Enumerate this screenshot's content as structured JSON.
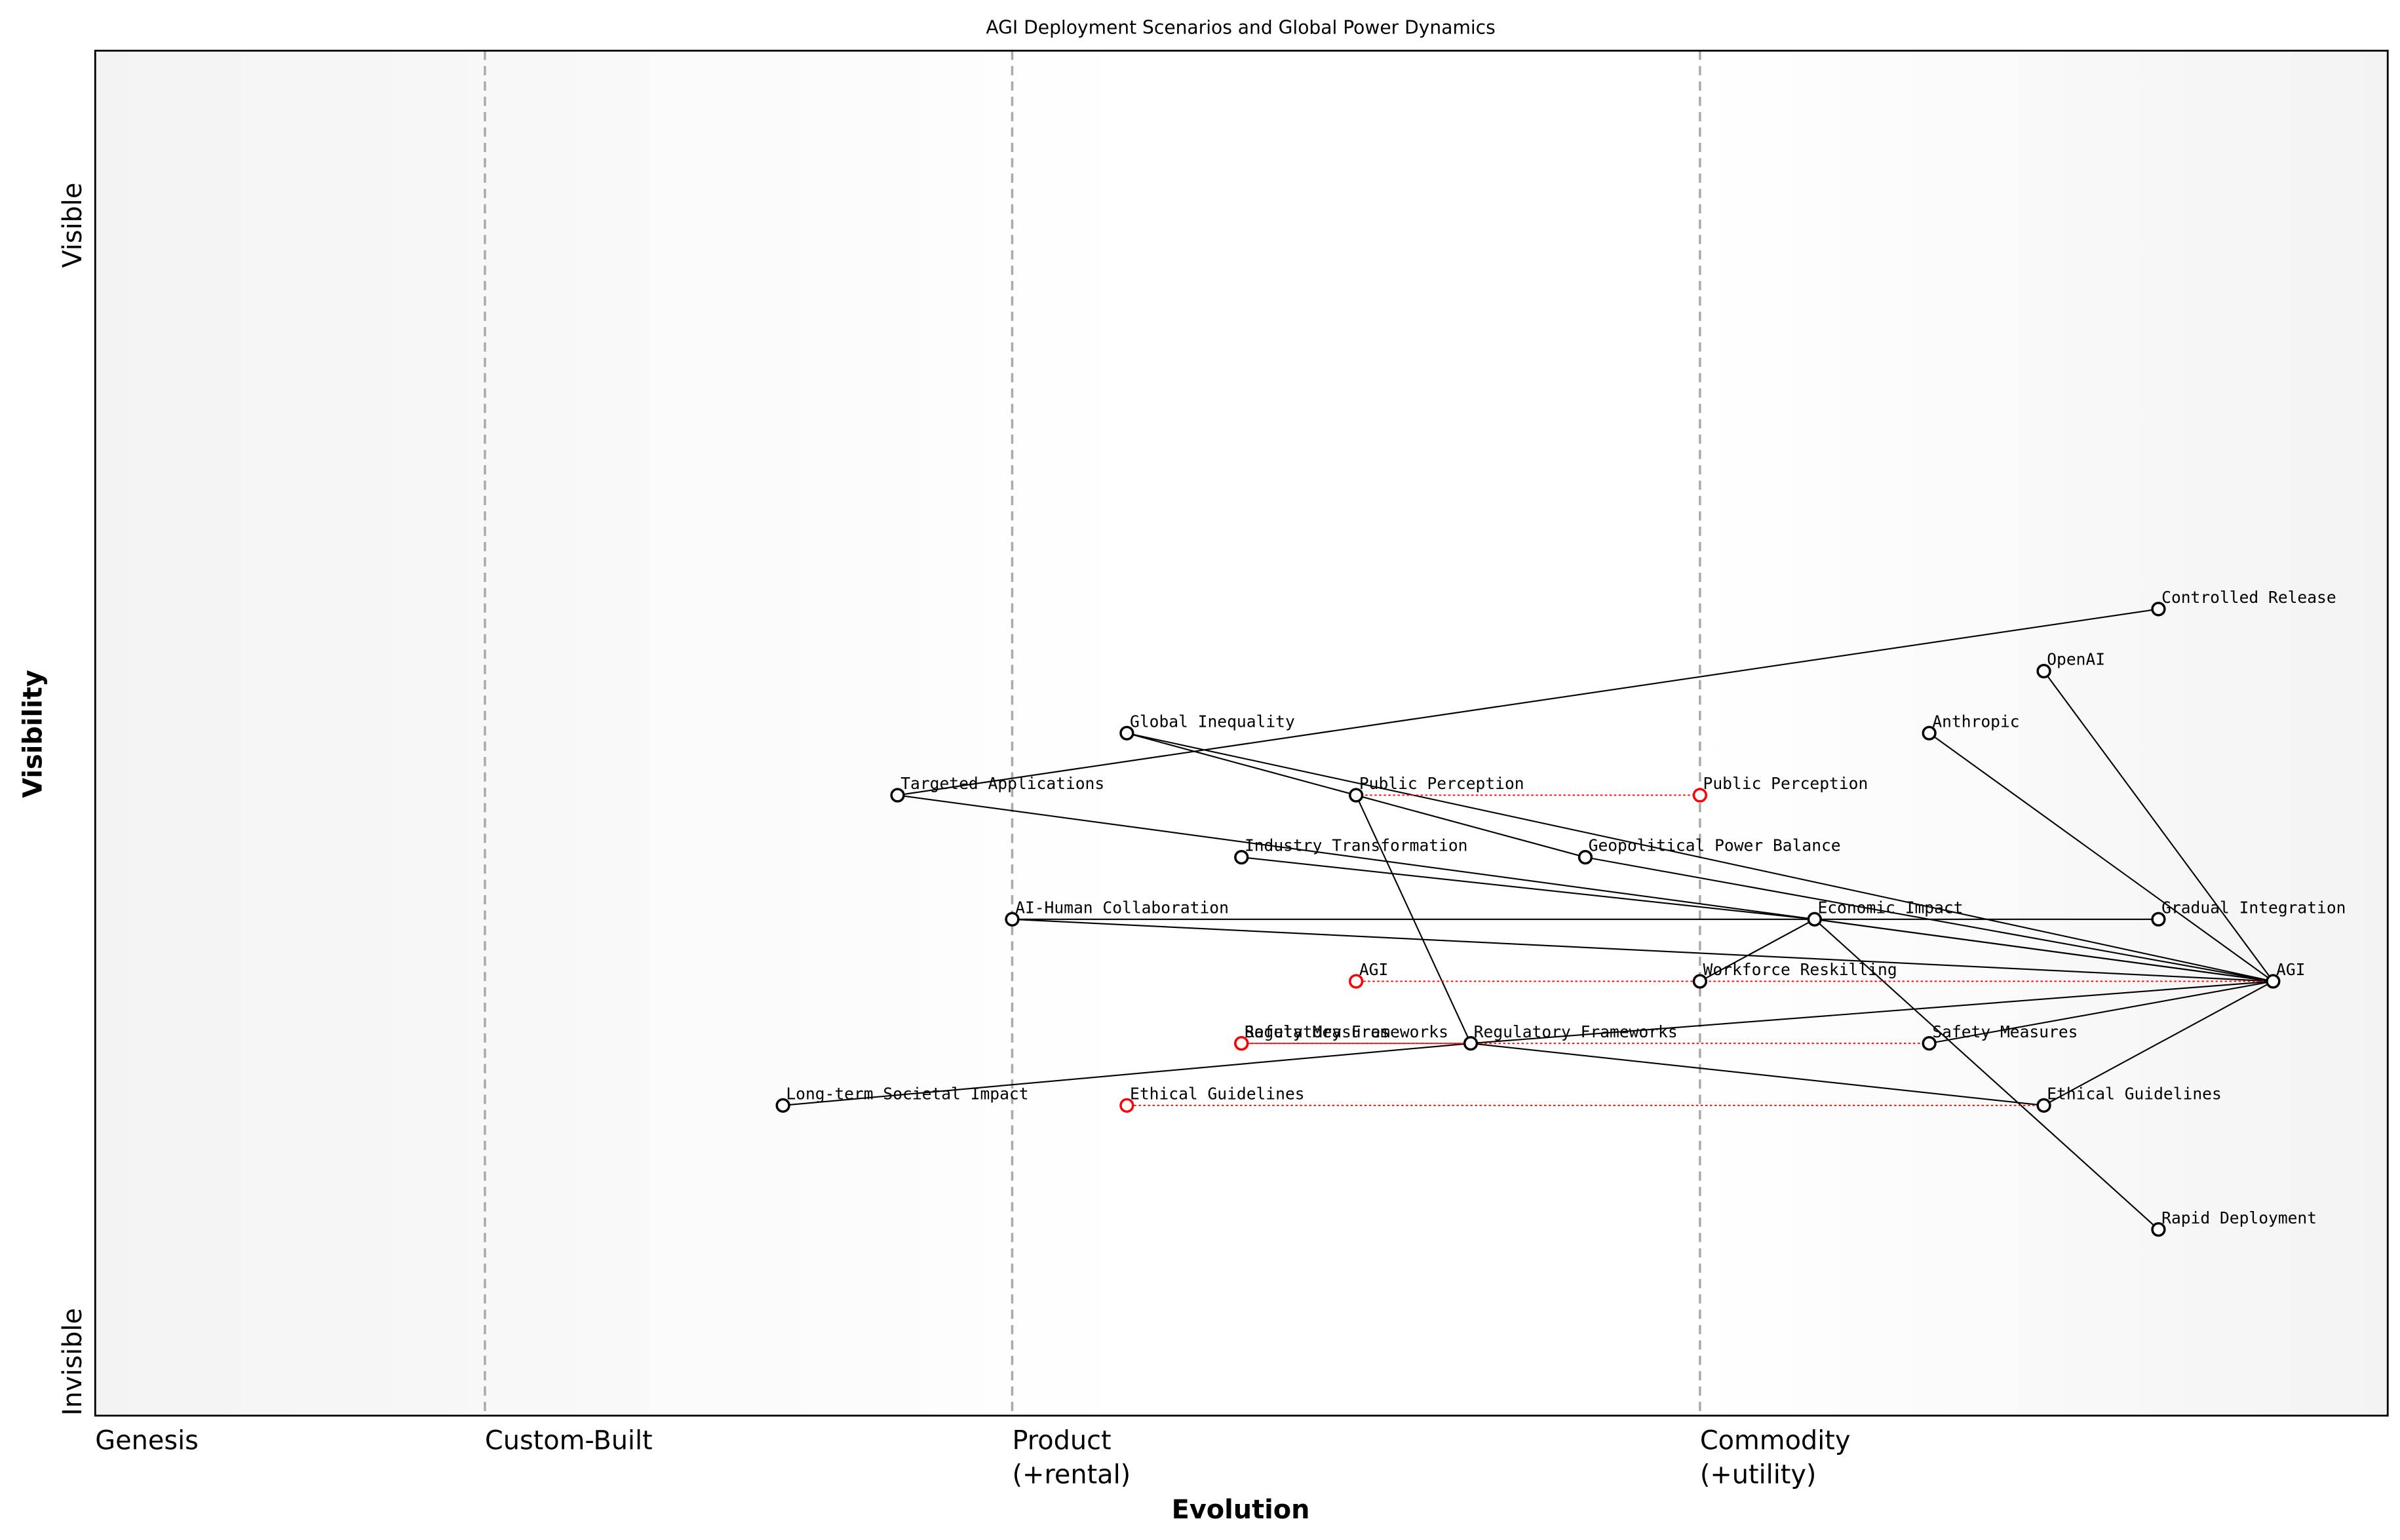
{
  "chart_data": {
    "type": "wardley",
    "title": "AGI Deployment Scenarios and Global Power Dynamics",
    "xlabel": "Evolution",
    "ylabel": "Visibility",
    "xlim": [
      0,
      1
    ],
    "ylim": [
      0,
      1.1
    ],
    "xticks": [
      {
        "value": 0,
        "label": "Genesis"
      },
      {
        "value": 0.17,
        "label": "Custom-Built"
      },
      {
        "value": 0.4,
        "label": "Product\n(+rental)"
      },
      {
        "value": 0.7,
        "label": "Commodity\n(+utility)"
      }
    ],
    "yticks": [
      {
        "value": 0,
        "label": "Invisible"
      },
      {
        "value": 0.925,
        "label": "Visible"
      }
    ],
    "components": [
      {
        "name": "AGI",
        "x": 0.95,
        "y": 0.35
      },
      {
        "name": "OpenAI",
        "x": 0.85,
        "y": 0.6
      },
      {
        "name": "Anthropic",
        "x": 0.8,
        "y": 0.55
      },
      {
        "name": "Controlled Release",
        "x": 0.9,
        "y": 0.65
      },
      {
        "name": "Gradual Integration",
        "x": 0.9,
        "y": 0.4
      },
      {
        "name": "Rapid Deployment",
        "x": 0.9,
        "y": 0.15
      },
      {
        "name": "Economic Impact",
        "x": 0.75,
        "y": 0.4
      },
      {
        "name": "Geopolitical Power Balance",
        "x": 0.65,
        "y": 0.45
      },
      {
        "name": "Public Perception",
        "x": 0.55,
        "y": 0.5
      },
      {
        "name": "Global Inequality",
        "x": 0.45,
        "y": 0.55
      },
      {
        "name": "Targeted Applications",
        "x": 0.35,
        "y": 0.5
      },
      {
        "name": "Industry Transformation",
        "x": 0.5,
        "y": 0.45
      },
      {
        "name": "AI-Human Collaboration",
        "x": 0.4,
        "y": 0.4
      },
      {
        "name": "Workforce Reskilling",
        "x": 0.7,
        "y": 0.35
      },
      {
        "name": "Regulatory Frameworks",
        "x": 0.6,
        "y": 0.3
      },
      {
        "name": "Safety Measures",
        "x": 0.8,
        "y": 0.3
      },
      {
        "name": "Ethical Guidelines",
        "x": 0.85,
        "y": 0.25
      },
      {
        "name": "Long-term Societal Impact",
        "x": 0.3,
        "y": 0.25
      }
    ],
    "evolutions": [
      {
        "name": "AGI",
        "x": 0.55,
        "y": 0.35
      },
      {
        "name": "Public Perception",
        "x": 0.7,
        "y": 0.5
      },
      {
        "name": "Regulatory Frameworks",
        "x": 0.5,
        "y": 0.3
      },
      {
        "name": "Safety Measures",
        "x": 0.5,
        "y": 0.3
      },
      {
        "name": "Ethical Guidelines",
        "x": 0.45,
        "y": 0.25
      }
    ],
    "links": [
      [
        "Controlled Release",
        "Targeted Applications"
      ],
      [
        "OpenAI",
        "AGI"
      ],
      [
        "Anthropic",
        "AGI"
      ],
      [
        "Global Inequality",
        "Geopolitical Power Balance"
      ],
      [
        "Global Inequality",
        "AGI"
      ],
      [
        "Public Perception",
        "Regulatory Frameworks"
      ],
      [
        "Targeted Applications",
        "AGI"
      ],
      [
        "Industry Transformation",
        "Economic Impact"
      ],
      [
        "AI-Human Collaboration",
        "Gradual Integration"
      ],
      [
        "AI-Human Collaboration",
        "AGI"
      ],
      [
        "Geopolitical Power Balance",
        "AGI"
      ],
      [
        "Economic Impact",
        "Workforce Reskilling"
      ],
      [
        "Economic Impact",
        "Rapid Deployment"
      ],
      [
        "Economic Impact",
        "AGI"
      ],
      [
        "Regulatory Frameworks",
        "AGI"
      ],
      [
        "Regulatory Frameworks",
        "Ethical Guidelines"
      ],
      [
        "Long-term Societal Impact",
        "Regulatory Frameworks"
      ],
      [
        "Safety Measures",
        "AGI"
      ],
      [
        "Ethical Guidelines",
        "AGI"
      ]
    ]
  }
}
